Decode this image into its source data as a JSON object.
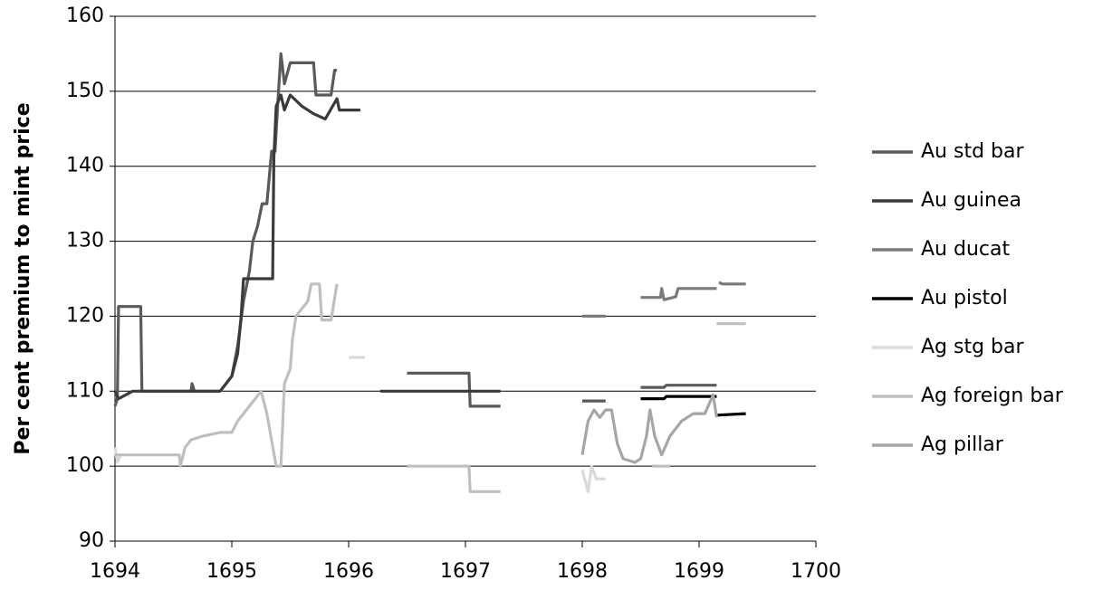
{
  "chart_data": {
    "type": "line",
    "ylabel": "Per cent premium to mint price",
    "xlim": [
      1694,
      1700
    ],
    "xticks": [
      1694,
      1695,
      1696,
      1697,
      1698,
      1699,
      1700
    ],
    "ylim": [
      90,
      160
    ],
    "yticks": [
      90,
      100,
      110,
      120,
      130,
      140,
      150,
      160
    ],
    "grid": true,
    "legend": "right",
    "series": [
      {
        "name": "Au std bar",
        "color": "#5a5a5a",
        "x": [
          1694,
          1694.02,
          1694.03,
          1694.22,
          1694.23,
          1694.65,
          1694.66,
          1694.68,
          1694.9,
          1694.95,
          1695.0,
          1695.05,
          1695.1,
          1695.15,
          1695.18,
          1695.22,
          1695.26,
          1695.3,
          1695.34,
          1695.37,
          1695.4,
          1695.42,
          1695.45,
          1695.5,
          1695.7,
          1695.72,
          1695.85,
          1695.88,
          1695.9,
          null,
          1696.5,
          1697.03,
          1697.04,
          1697.3,
          null,
          1698.0,
          1698.2,
          null,
          1698.5,
          1698.7,
          1698.72,
          1699.15
        ],
        "values": [
          108,
          109,
          121.3,
          121.3,
          110,
          110,
          111,
          110,
          110,
          111,
          112,
          116,
          122,
          126,
          130,
          132,
          135,
          135,
          142,
          142,
          150,
          155,
          151,
          153.8,
          153.8,
          149.5,
          149.5,
          152.8,
          152.8,
          null,
          112.4,
          112.4,
          108,
          108,
          null,
          108.7,
          108.7,
          null,
          110.5,
          110.5,
          110.8,
          110.8
        ]
      },
      {
        "name": "Au guinea",
        "color": "#3a3a3a",
        "x": [
          1694,
          1694.03,
          1694.15,
          1694.9,
          1695.0,
          1695.05,
          1695.08,
          1695.1,
          1695.35,
          1695.36,
          1695.38,
          1695.42,
          1695.45,
          1695.5,
          1695.6,
          1695.7,
          1695.8,
          1695.9,
          1695.92,
          1696.1,
          null,
          1696.27,
          1697.3
        ],
        "values": [
          110,
          109,
          110,
          110,
          112,
          115,
          120,
          125,
          125,
          141,
          148,
          149.5,
          147.5,
          149.5,
          148,
          147,
          146.3,
          149,
          147.5,
          147.5,
          null,
          110,
          110
        ]
      },
      {
        "name": "Au ducat",
        "color": "#7a7a7a",
        "x": [
          1698.0,
          1698.2,
          null,
          1698.5,
          1698.67,
          1698.68,
          1698.7,
          1698.8,
          1698.82,
          1699.15,
          null,
          1699.17,
          1699.2,
          1699.4
        ],
        "values": [
          120,
          120,
          null,
          122.5,
          122.5,
          123.7,
          122.2,
          122.6,
          123.7,
          123.7,
          null,
          124.5,
          124.3,
          124.3
        ]
      },
      {
        "name": "Au pistol",
        "color": "#000000",
        "x": [
          1698.5,
          1698.7,
          1698.72,
          1699.15,
          null,
          1699.15,
          1699.4
        ],
        "values": [
          109,
          109,
          109.3,
          109.3,
          null,
          106.8,
          107
        ]
      },
      {
        "name": "Ag stg bar",
        "color": "#dadada",
        "x": [
          1694.0,
          1694.02,
          1694.05,
          null,
          1696.0,
          1696.14,
          null,
          1698.0,
          1698.05,
          1698.08,
          1698.12,
          1698.2
        ],
        "values": [
          102.5,
          100.5,
          101.5,
          null,
          114.5,
          114.5,
          null,
          99.5,
          96.6,
          100,
          98.3,
          98.3
        ]
      },
      {
        "name": "Ag foreign bar",
        "color": "#bfbfbf",
        "x": [
          1694.0,
          1694.55,
          1694.56,
          1694.6,
          1694.65,
          1694.75,
          1694.9,
          1695.0,
          1695.05,
          1695.15,
          1695.25,
          1695.3,
          1695.38,
          1695.42,
          1695.45,
          1695.5,
          1695.52,
          1695.55,
          1695.65,
          1695.68,
          1695.75,
          1695.77,
          1695.85,
          1695.9,
          null,
          1696.5,
          1697.03,
          1697.04,
          1697.3,
          null,
          1698.6,
          1698.75,
          null,
          1699.15,
          1699.4
        ],
        "values": [
          101.5,
          101.5,
          100,
          102.5,
          103.5,
          104,
          104.5,
          104.5,
          106,
          108,
          110,
          107,
          100,
          100,
          111,
          113,
          117,
          120,
          122,
          124.3,
          124.3,
          119.5,
          119.5,
          124.3,
          null,
          100,
          100,
          96.6,
          96.6,
          null,
          100,
          100,
          null,
          119,
          119
        ]
      },
      {
        "name": "Ag pillar",
        "color": "#a6a6a6",
        "x": [
          1698.0,
          1698.05,
          1698.1,
          1698.15,
          1698.2,
          1698.25,
          1698.3,
          1698.35,
          1698.45,
          1698.5,
          1698.55,
          1698.58,
          1698.62,
          1698.68,
          1698.75,
          1698.85,
          1698.95,
          1699.05,
          1699.12,
          1699.15
        ],
        "values": [
          101.5,
          106,
          107.5,
          106.5,
          107.5,
          107.5,
          103,
          101,
          100.5,
          101,
          104,
          107.5,
          104,
          101.5,
          104,
          106,
          107,
          107,
          109.5,
          106.5
        ]
      }
    ]
  }
}
